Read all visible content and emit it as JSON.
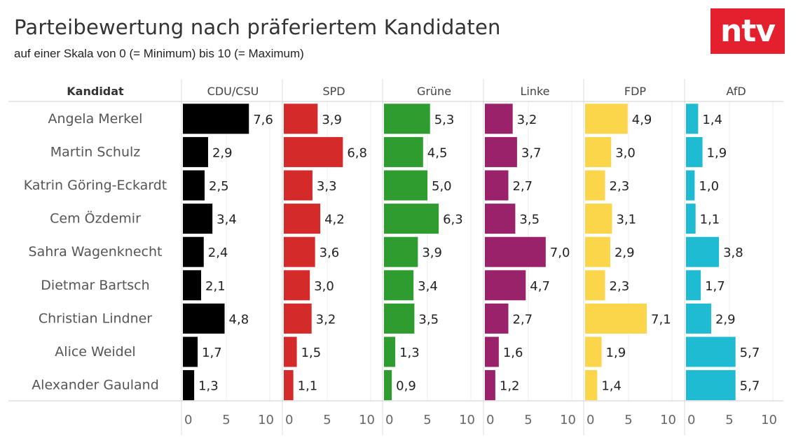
{
  "header": {
    "title": "Parteibewertung nach präferiertem Kandidaten",
    "subtitle": "auf einer Skala von 0 (= Minimum) bis 10 (= Maximum)",
    "logo": "ntv",
    "logo_color": "#e4202e"
  },
  "chart_data": {
    "type": "bar",
    "orientation": "horizontal",
    "title": "Parteibewertung nach präferiertem Kandidaten",
    "subtitle": "auf einer Skala von 0 (= Minimum) bis 10 (= Maximum)",
    "row_header": "Kandidat",
    "categories": [
      "Angela Merkel",
      "Martin Schulz",
      "Katrin Göring-Eckardt",
      "Cem Özdemir",
      "Sahra Wagenknecht",
      "Dietmar Bartsch",
      "Christian Lindner",
      "Alice Weidel",
      "Alexander Gauland"
    ],
    "xlim": [
      0,
      10
    ],
    "ticks": [
      0,
      5,
      10
    ],
    "grid": true,
    "series": [
      {
        "name": "CDU/CSU",
        "color": "#000000",
        "values": [
          7.6,
          2.9,
          2.5,
          3.4,
          2.4,
          2.1,
          4.8,
          1.7,
          1.3
        ],
        "labels": [
          "7,6",
          "2,9",
          "2,5",
          "3,4",
          "2,4",
          "2,1",
          "4,8",
          "1,7",
          "1,3"
        ]
      },
      {
        "name": "SPD",
        "color": "#d42a2a",
        "values": [
          3.9,
          6.8,
          3.3,
          4.2,
          3.6,
          3.0,
          3.2,
          1.5,
          1.1
        ],
        "labels": [
          "3,9",
          "6,8",
          "3,3",
          "4,2",
          "3,6",
          "3,0",
          "3,2",
          "1,5",
          "1,1"
        ]
      },
      {
        "name": "Grüne",
        "color": "#2e9c2e",
        "values": [
          5.3,
          4.5,
          5.0,
          6.3,
          3.9,
          3.4,
          3.5,
          1.3,
          0.9
        ],
        "labels": [
          "5,3",
          "4,5",
          "5,0",
          "6,3",
          "3,9",
          "3,4",
          "3,5",
          "1,3",
          "0,9"
        ]
      },
      {
        "name": "Linke",
        "color": "#99226a",
        "values": [
          3.2,
          3.7,
          2.7,
          3.5,
          7.0,
          4.7,
          2.7,
          1.6,
          1.2
        ],
        "labels": [
          "3,2",
          "3,7",
          "2,7",
          "3,5",
          "7,0",
          "4,7",
          "2,7",
          "1,6",
          "1,2"
        ]
      },
      {
        "name": "FDP",
        "color": "#fcd64a",
        "values": [
          4.9,
          3.0,
          2.3,
          3.1,
          2.9,
          2.3,
          7.1,
          1.9,
          1.4
        ],
        "labels": [
          "4,9",
          "3,0",
          "2,3",
          "3,1",
          "2,9",
          "2,3",
          "7,1",
          "1,9",
          "1,4"
        ]
      },
      {
        "name": "AfD",
        "color": "#1ebbd3",
        "values": [
          1.4,
          1.9,
          1.0,
          1.1,
          3.8,
          1.7,
          2.9,
          5.7,
          5.7
        ],
        "labels": [
          "1,4",
          "1,9",
          "1,0",
          "1,1",
          "3,8",
          "1,7",
          "2,9",
          "5,7",
          "5,7"
        ]
      }
    ]
  }
}
